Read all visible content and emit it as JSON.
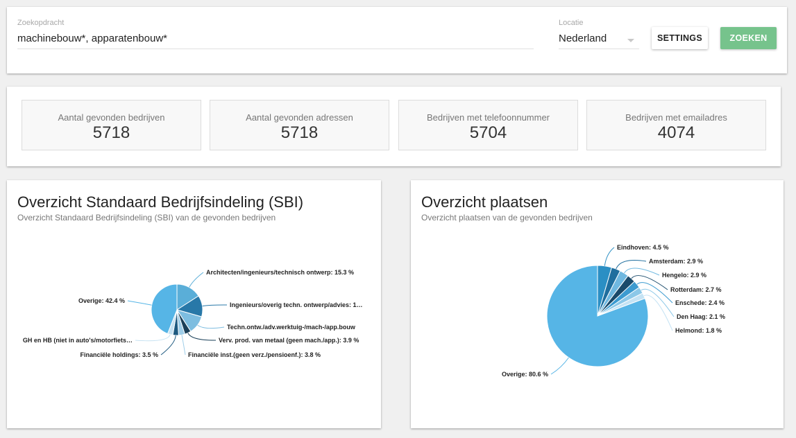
{
  "search": {
    "query_label": "Zoekopdracht",
    "query_value": "machinebouw*, apparatenbouw*",
    "location_label": "Locatie",
    "location_value": "Nederland",
    "settings_label": "SETTINGS",
    "search_label": "ZOEKEN",
    "search_color": "#76c38c"
  },
  "stats": [
    {
      "label": "Aantal gevonden bedrijven",
      "value": "5718"
    },
    {
      "label": "Aantal gevonden adressen",
      "value": "5718"
    },
    {
      "label": "Bedrijven met telefoonnummer",
      "value": "5704"
    },
    {
      "label": "Bedrijven met emailadres",
      "value": "4074"
    }
  ],
  "sbi": {
    "title": "Overzicht Standaard Bedrijfsindeling (SBI)",
    "subtitle": "Overzicht Standaard Bedrijfsindeling (SBI) van de gevonden bedrijven"
  },
  "plaatsen": {
    "title": "Overzicht plaatsen",
    "subtitle": "Overzicht plaatsen van de gevonden bedrijven"
  },
  "chart_data": [
    {
      "type": "pie",
      "title": "Overzicht Standaard Bedrijfsindeling (SBI)",
      "slices": [
        {
          "label": "Architecten/ingenieurs/technisch ontwerp: 15.3 %",
          "value": 15.3,
          "color": "#5aaed8"
        },
        {
          "label": "Ingenieurs/overig techn. ontwerp/advies: 1…",
          "value": 13.0,
          "color": "#2878a8"
        },
        {
          "label": "Techn.ontw./adv.werktuig-/mach-/app.bouw",
          "value": 11.1,
          "color": "#7dbde0"
        },
        {
          "label": "Verv. prod. van metaal (geen mach./app.): 3.9 %",
          "value": 3.9,
          "color": "#1a3f58"
        },
        {
          "label": "Financiële inst.(geen verz./pensioenf.): 3.8 %",
          "value": 3.8,
          "color": "#9ecde8"
        },
        {
          "label": "Financiële holdings: 3.5 %",
          "value": 3.5,
          "color": "#1e5a80"
        },
        {
          "label": "GH en HB (niet in auto's/motorfiets…",
          "value": 3.2,
          "color": "#c6e2f2"
        },
        {
          "label": "Overige: 42.4 %",
          "value": 42.4,
          "color": "#56b5e6"
        }
      ]
    },
    {
      "type": "pie",
      "title": "Overzicht plaatsen",
      "slices": [
        {
          "label": "Eindhoven: 4.5 %",
          "value": 4.5,
          "color": "#2b8fc4"
        },
        {
          "label": "Amsterdam: 2.9 %",
          "value": 2.9,
          "color": "#1f6e9e"
        },
        {
          "label": "Hengelo: 2.9 %",
          "value": 2.9,
          "color": "#6fb8e0"
        },
        {
          "label": "Rotterdam: 2.7 %",
          "value": 2.7,
          "color": "#1a4a6a"
        },
        {
          "label": "Enschede: 2.4 %",
          "value": 2.4,
          "color": "#3c9bd0"
        },
        {
          "label": "Den Haag: 2.1 %",
          "value": 2.1,
          "color": "#8cc8e8"
        },
        {
          "label": "Helmond: 1.8 %",
          "value": 1.8,
          "color": "#c5e3f4"
        },
        {
          "label": "Overige: 80.6 %",
          "value": 80.6,
          "color": "#56b5e6"
        }
      ]
    }
  ]
}
